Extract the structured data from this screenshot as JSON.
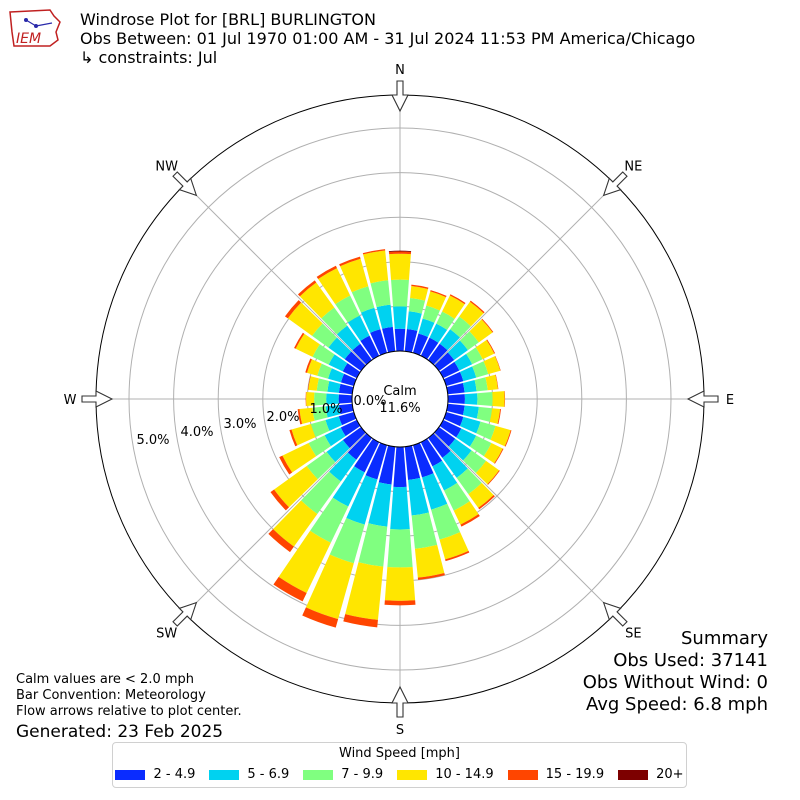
{
  "header": {
    "title_line1": "Windrose Plot for [BRL] BURLINGTON",
    "title_line2": "Obs Between: 01 Jul 1970 01:00 AM - 31 Jul 2024 11:53 PM America/Chicago",
    "title_line3": "↳ constraints: Jul",
    "logo_text": "IEM"
  },
  "summary": {
    "heading": "Summary",
    "obs_used": "Obs Used: 37141",
    "obs_without_wind": "Obs Without Wind: 0",
    "avg_speed": "Avg Speed: 6.8 mph"
  },
  "notes": {
    "calm_note": "Calm values are < 2.0 mph",
    "bar_convention": "Bar Convention: Meteorology",
    "flow_arrows": "Flow arrows relative to plot center.",
    "generated": "Generated: 23 Feb 2025"
  },
  "chart_data": {
    "type": "windrose",
    "calm_label": "Calm",
    "calm_value": "11.6%",
    "calm_percent": 11.6,
    "directions": [
      "N",
      "NE",
      "E",
      "SE",
      "S",
      "SW",
      "W",
      "NW"
    ],
    "radial_labels": [
      "0.0%",
      "1.0%",
      "2.0%",
      "3.0%",
      "4.0%",
      "5.0%"
    ],
    "radial_ticks": [
      0,
      1,
      2,
      3,
      4,
      5
    ],
    "legend_title": "Wind Speed [mph]",
    "speed_bins": [
      "2 - 4.9",
      "5 - 6.9",
      "7 - 9.9",
      "10 - 14.9",
      "15 - 19.9",
      "20+"
    ],
    "colors": [
      "#0a2cff",
      "#00d2f0",
      "#80ff80",
      "#ffe600",
      "#ff4500",
      "#7d0000"
    ],
    "bar_directions_deg": [
      0,
      10,
      20,
      30,
      40,
      50,
      60,
      70,
      80,
      90,
      100,
      110,
      120,
      130,
      140,
      150,
      160,
      170,
      180,
      190,
      200,
      210,
      220,
      230,
      240,
      250,
      260,
      270,
      280,
      290,
      300,
      310,
      320,
      330,
      340,
      350
    ],
    "cumulative_percent": [
      [
        0.5,
        1.0,
        1.6,
        2.18,
        2.23,
        2.25
      ],
      [
        0.5,
        0.9,
        1.2,
        1.47,
        1.5,
        1.5
      ],
      [
        0.45,
        0.8,
        1.1,
        1.43,
        1.46,
        1.46
      ],
      [
        0.45,
        0.8,
        1.1,
        1.5,
        1.53,
        1.53
      ],
      [
        0.45,
        0.85,
        1.2,
        1.61,
        1.64,
        1.64
      ],
      [
        0.42,
        0.8,
        1.1,
        1.48,
        1.5,
        1.5
      ],
      [
        0.4,
        0.72,
        0.98,
        1.27,
        1.29,
        1.29
      ],
      [
        0.4,
        0.7,
        0.98,
        1.26,
        1.27,
        1.27
      ],
      [
        0.38,
        0.65,
        0.9,
        1.13,
        1.14,
        1.14
      ],
      [
        0.38,
        0.66,
        1.0,
        1.27,
        1.28,
        1.28
      ],
      [
        0.38,
        0.7,
        1.0,
        1.18,
        1.2,
        1.2
      ],
      [
        0.4,
        0.8,
        1.15,
        1.5,
        1.52,
        1.52
      ],
      [
        0.45,
        0.82,
        1.2,
        1.48,
        1.5,
        1.5
      ],
      [
        0.45,
        0.9,
        1.3,
        1.66,
        1.68,
        1.68
      ],
      [
        0.55,
        1.1,
        1.55,
        1.93,
        1.97,
        1.97
      ],
      [
        0.6,
        1.2,
        1.7,
        2.05,
        2.1,
        2.1
      ],
      [
        0.75,
        1.5,
        2.2,
        2.66,
        2.7,
        2.7
      ],
      [
        0.75,
        1.55,
        2.3,
        2.95,
        3.0,
        3.0
      ],
      [
        0.9,
        1.85,
        2.7,
        3.45,
        3.55,
        3.55
      ],
      [
        0.85,
        1.8,
        2.7,
        3.9,
        4.07,
        4.07
      ],
      [
        0.8,
        1.85,
        2.75,
        4.05,
        4.25,
        4.25
      ],
      [
        0.75,
        1.6,
        2.5,
        3.75,
        3.96,
        3.96
      ],
      [
        0.6,
        1.2,
        2.1,
        3.0,
        3.15,
        3.15
      ],
      [
        0.5,
        0.95,
        1.5,
        2.4,
        2.5,
        2.5
      ],
      [
        0.4,
        0.8,
        1.2,
        1.85,
        1.93,
        1.93
      ],
      [
        0.35,
        0.66,
        1.0,
        1.45,
        1.5,
        1.5
      ],
      [
        0.3,
        0.6,
        0.9,
        1.19,
        1.23,
        1.23
      ],
      [
        0.3,
        0.58,
        0.85,
        1.03,
        1.04,
        1.04
      ],
      [
        0.3,
        0.56,
        0.8,
        0.99,
        1.0,
        1.0
      ],
      [
        0.3,
        0.6,
        0.85,
        1.09,
        1.13,
        1.13
      ],
      [
        0.35,
        0.7,
        1.1,
        1.52,
        1.56,
        1.56
      ],
      [
        0.45,
        0.9,
        1.35,
        2.02,
        2.1,
        2.1
      ],
      [
        0.45,
        0.95,
        1.45,
        2.14,
        2.2,
        2.2
      ],
      [
        0.5,
        1.0,
        1.5,
        2.18,
        2.24,
        2.24
      ],
      [
        0.55,
        1.05,
        1.55,
        2.19,
        2.24,
        2.24
      ],
      [
        0.55,
        1.05,
        1.6,
        2.27,
        2.3,
        2.3
      ]
    ]
  }
}
